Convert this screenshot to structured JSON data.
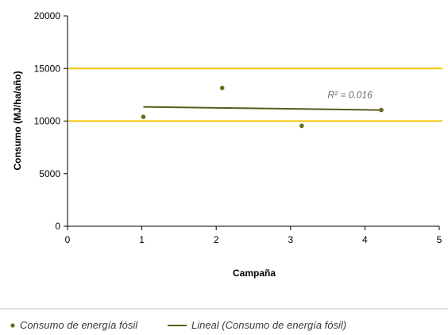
{
  "chart_data": {
    "type": "scatter",
    "xlabel": "Campaña",
    "ylabel": "Consumo (MJ/ha/año)",
    "xlim": [
      0,
      5
    ],
    "ylim": [
      0,
      20000
    ],
    "x_ticks": [
      0,
      1,
      2,
      3,
      4,
      5
    ],
    "y_ticks": [
      0,
      5000,
      10000,
      15000,
      20000
    ],
    "grid": false,
    "reference_lines": [
      {
        "y": 10000,
        "color": "#f5c400"
      },
      {
        "y": 15000,
        "color": "#f5c400"
      }
    ],
    "series": [
      {
        "name": "Consumo de energía fósil",
        "type": "scatter",
        "color": "#6b6b1f",
        "points": [
          {
            "x": 1.02,
            "y": 10400
          },
          {
            "x": 2.08,
            "y": 13150
          },
          {
            "x": 3.15,
            "y": 9550
          },
          {
            "x": 4.22,
            "y": 11050
          }
        ]
      },
      {
        "name": "Lineal (Consumo de energía fósil)",
        "type": "line",
        "color": "#5a5a1e",
        "points": [
          {
            "x": 1.02,
            "y": 11350
          },
          {
            "x": 4.22,
            "y": 11050
          }
        ]
      }
    ],
    "annotations": [
      {
        "text": "R² = 0.016",
        "x": 4.1,
        "y": 12200
      }
    ],
    "legend_position": "bottom"
  }
}
